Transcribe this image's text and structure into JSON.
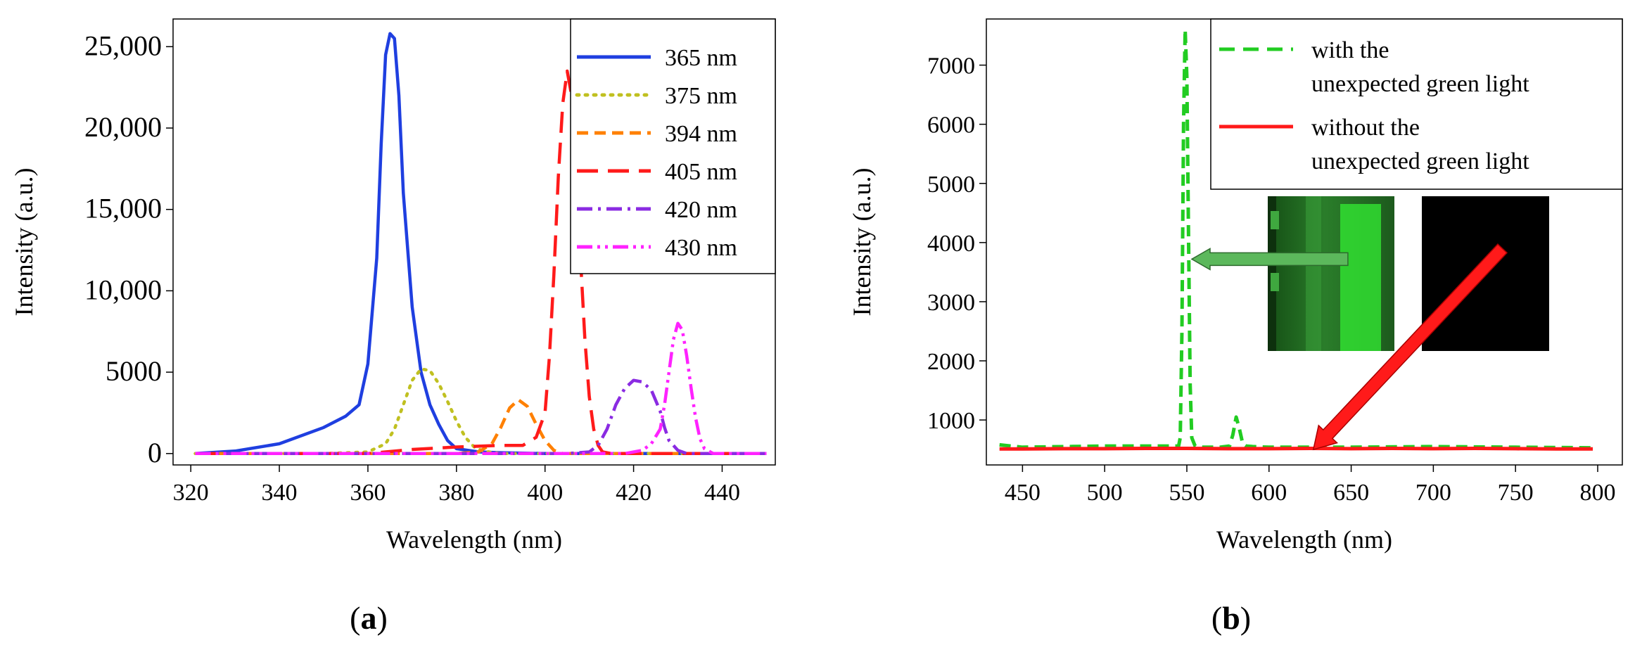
{
  "panels": {
    "a_label": "(a)",
    "a_letter": "a",
    "b_label": "(b)",
    "b_letter": "b"
  },
  "inset_images": [
    {
      "name": "green-emission-photo",
      "description_color": "#1f7a1f"
    },
    {
      "name": "dark-emission-photo",
      "description_color": "#000000"
    }
  ],
  "arrows": [
    {
      "name": "green-arrow",
      "color": "#5cb85c",
      "from": [
        648,
        3720
      ],
      "to": [
        553,
        3720
      ]
    },
    {
      "name": "red-arrow",
      "color": "#ff1a1a",
      "from": [
        742,
        3900
      ],
      "to": [
        627,
        500
      ]
    }
  ],
  "chart_data": [
    {
      "type": "line",
      "xlabel": "Wavelength (nm)",
      "ylabel": "Intensity (a.u.)",
      "xlim": [
        316,
        452
      ],
      "ylim": [
        -700,
        26700
      ],
      "xticks": [
        320,
        340,
        360,
        380,
        400,
        420,
        440
      ],
      "xtick_labels": [
        "320",
        "340",
        "360",
        "380",
        "400",
        "420",
        "440"
      ],
      "yticks": [
        0,
        5000,
        10000,
        15000,
        20000,
        25000
      ],
      "ytick_labels": [
        "0",
        "5000",
        "10,000",
        "15,000",
        "20,000",
        "25,000"
      ],
      "legend_position": "top-right",
      "series": [
        {
          "name": "365 nm",
          "color": "#1f3fe0",
          "dash": "solid",
          "x": [
            321,
            330,
            340,
            350,
            355,
            358,
            360,
            362,
            363,
            364,
            365,
            366,
            367,
            368,
            370,
            372,
            374,
            376,
            378,
            380,
            385,
            390,
            400,
            450
          ],
          "y": [
            0,
            150,
            600,
            1600,
            2300,
            3000,
            5500,
            12000,
            19000,
            24500,
            25800,
            25500,
            22000,
            16000,
            9000,
            5000,
            3000,
            1800,
            800,
            300,
            100,
            50,
            0,
            0
          ]
        },
        {
          "name": "375 nm",
          "color": "#c0c020",
          "dash": "dotted",
          "x": [
            321,
            350,
            360,
            364,
            366,
            368,
            370,
            372,
            374,
            376,
            378,
            380,
            382,
            384,
            386,
            390,
            450
          ],
          "y": [
            0,
            0,
            100,
            600,
            1500,
            3000,
            4500,
            5200,
            5100,
            4300,
            3200,
            2000,
            1000,
            400,
            150,
            0,
            0
          ]
        },
        {
          "name": "394 nm",
          "color": "#ff8000",
          "dash": "dashed",
          "x": [
            321,
            380,
            385,
            388,
            390,
            392,
            394,
            396,
            398,
            400,
            402,
            404,
            450
          ],
          "y": [
            0,
            0,
            100,
            600,
            1600,
            2800,
            3300,
            2900,
            1800,
            800,
            200,
            0,
            0
          ]
        },
        {
          "name": "405 nm",
          "color": "#ff1a1a",
          "dash": "longdash",
          "x": [
            321,
            360,
            370,
            380,
            390,
            395,
            398,
            400,
            401,
            402,
            403,
            404,
            405,
            406,
            407,
            408,
            409,
            410,
            411,
            412,
            413,
            415,
            450
          ],
          "y": [
            0,
            0,
            250,
            400,
            500,
            500,
            1000,
            2500,
            6000,
            11000,
            17000,
            21500,
            23500,
            22000,
            18000,
            12000,
            7000,
            3500,
            1500,
            500,
            100,
            0,
            0
          ]
        },
        {
          "name": "420 nm",
          "color": "#8a2be2",
          "dash": "dashdot",
          "x": [
            321,
            405,
            410,
            412,
            414,
            416,
            418,
            420,
            422,
            424,
            426,
            427,
            428,
            430,
            432,
            450
          ],
          "y": [
            0,
            0,
            100,
            500,
            1500,
            3000,
            4000,
            4500,
            4400,
            3900,
            2600,
            1600,
            800,
            200,
            0,
            0
          ]
        },
        {
          "name": "430 nm",
          "color": "#ff22ff",
          "dash": "dashdotdot",
          "x": [
            321,
            418,
            422,
            424,
            426,
            427,
            428,
            429,
            430,
            431,
            432,
            433,
            434,
            435,
            436,
            438,
            450
          ],
          "y": [
            0,
            0,
            200,
            600,
            1500,
            3000,
            5000,
            7000,
            8000,
            7600,
            6000,
            4000,
            2200,
            900,
            300,
            0,
            0
          ]
        }
      ]
    },
    {
      "type": "line",
      "xlabel": "Wavelength (nm)",
      "ylabel": "Intensity (a.u.)",
      "xlim": [
        428,
        815
      ],
      "ylim": [
        240,
        7780
      ],
      "xticks": [
        450,
        500,
        550,
        600,
        650,
        700,
        750,
        800
      ],
      "xtick_labels": [
        "450",
        "500",
        "550",
        "600",
        "650",
        "700",
        "750",
        "800"
      ],
      "yticks": [
        1000,
        2000,
        3000,
        4000,
        5000,
        6000,
        7000
      ],
      "ytick_labels": [
        "1000",
        "2000",
        "3000",
        "4000",
        "5000",
        "6000",
        "7000"
      ],
      "legend_position": "top-right",
      "series": [
        {
          "name": "with the",
          "name_line2": "unexpected green light",
          "color": "#22cc22",
          "dash": "dashed",
          "x": [
            436,
            450,
            500,
            540,
            545,
            546,
            547,
            548,
            549,
            550,
            551,
            552,
            553,
            555,
            560,
            570,
            576,
            578,
            580,
            582,
            584,
            586,
            590,
            600,
            650,
            700,
            750,
            797
          ],
          "y": [
            580,
            540,
            560,
            560,
            560,
            700,
            2500,
            6000,
            7600,
            6800,
            4200,
            1600,
            700,
            560,
            540,
            540,
            560,
            750,
            1050,
            850,
            600,
            560,
            550,
            540,
            540,
            550,
            540,
            530
          ]
        },
        {
          "name": "without the",
          "name_line2": "unexpected green light",
          "color": "#ff1a1a",
          "dash": "solid",
          "x": [
            436,
            450,
            475,
            500,
            525,
            550,
            575,
            600,
            625,
            650,
            675,
            700,
            725,
            750,
            775,
            797
          ],
          "y": [
            510,
            510,
            515,
            515,
            520,
            520,
            515,
            515,
            520,
            515,
            520,
            515,
            520,
            515,
            510,
            510
          ]
        }
      ]
    }
  ]
}
